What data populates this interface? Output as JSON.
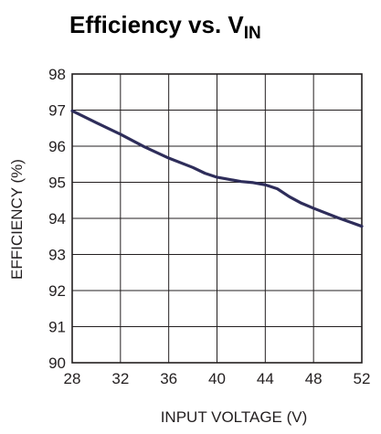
{
  "chart_data": {
    "type": "line",
    "title": "Efficiency vs. V",
    "title_subscript": "IN",
    "xlabel": "INPUT VOLTAGE (V)",
    "ylabel": "EFFICIENCY (%)",
    "xlim": [
      28,
      52
    ],
    "ylim": [
      90,
      98
    ],
    "xticks": [
      28,
      32,
      36,
      40,
      44,
      48,
      52
    ],
    "yticks": [
      90,
      91,
      92,
      93,
      94,
      95,
      96,
      97,
      98
    ],
    "grid": true,
    "legend": "none",
    "line_color": "#2e2d5a",
    "series": [
      {
        "x": [
          28,
          30,
          32,
          34,
          36,
          38,
          39,
          40,
          42,
          43,
          44,
          45,
          46,
          47,
          48,
          50,
          52
        ],
        "y": [
          96.98,
          96.65,
          96.33,
          95.98,
          95.67,
          95.41,
          95.25,
          95.14,
          95.02,
          94.99,
          94.93,
          94.82,
          94.6,
          94.42,
          94.28,
          94.02,
          93.78
        ]
      }
    ]
  }
}
